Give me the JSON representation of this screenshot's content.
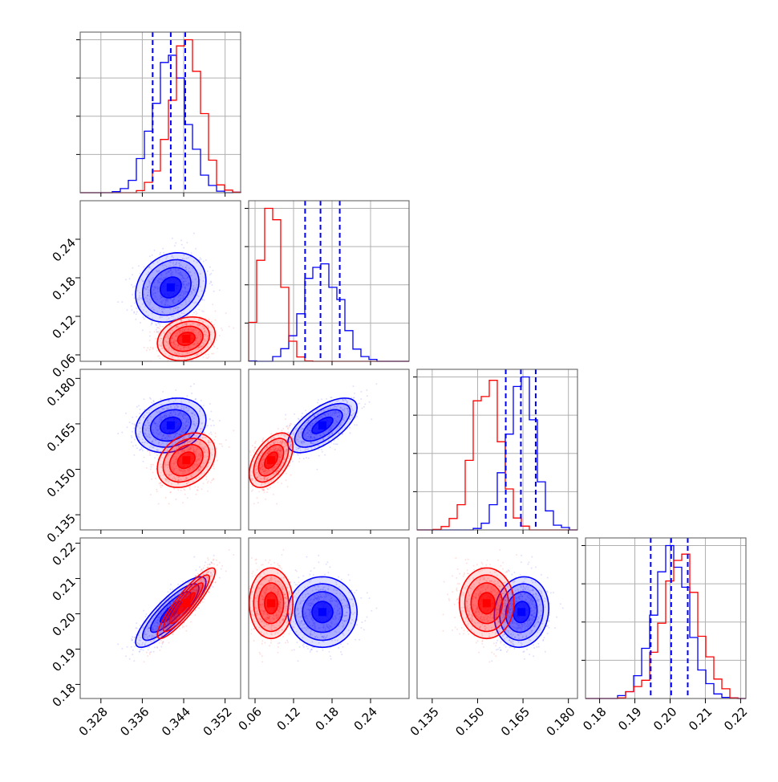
{
  "colors": {
    "model_a": "#0000ff",
    "model_b": "#ff0000",
    "background": "#ffffff",
    "grid": "#b0b0b0"
  },
  "chart_data": {
    "type": "corner",
    "grid": true,
    "parameters": [
      {
        "id": "p1",
        "range": [
          0.324,
          0.355
        ],
        "tick_labels": [
          "0.328",
          "0.336",
          "0.344",
          "0.352"
        ],
        "ticks": [
          0.328,
          0.336,
          0.344,
          0.352
        ]
      },
      {
        "id": "p2",
        "range": [
          0.05,
          0.3
        ],
        "tick_labels": [
          "0.06",
          "0.12",
          "0.18",
          "0.24"
        ],
        "ticks": [
          0.06,
          0.12,
          0.18,
          0.24
        ]
      },
      {
        "id": "p3",
        "range": [
          0.13,
          0.183
        ],
        "tick_labels": [
          "0.135",
          "0.150",
          "0.165",
          "0.180"
        ],
        "ticks": [
          0.135,
          0.15,
          0.165,
          0.18
        ]
      },
      {
        "id": "p4",
        "range": [
          0.176,
          0.2215
        ],
        "tick_labels": [
          "0.18",
          "0.19",
          "0.20",
          "0.21",
          "0.22"
        ],
        "ticks": [
          0.18,
          0.19,
          0.2,
          0.21,
          0.22
        ]
      }
    ],
    "series": [
      {
        "color": "#0000ff",
        "mean": [
          0.3415,
          0.165,
          0.1645,
          0.2005
        ],
        "std": [
          0.0034,
          0.027,
          0.0045,
          0.005
        ],
        "corr": {
          "p1-p2": 0.2,
          "p1-p3": 0.2,
          "p1-p4": 0.85,
          "p2-p3": 0.65,
          "p2-p4": 0.0,
          "p3-p4": 0.1
        },
        "quantiles": [
          [
            0.338,
            0.3415,
            0.3443
          ],
          [
            0.138,
            0.162,
            0.192
          ],
          [
            0.1593,
            0.1643,
            0.1692
          ],
          [
            0.1945,
            0.2003,
            0.205
          ]
        ]
      },
      {
        "color": "#ff0000",
        "mean": [
          0.3445,
          0.085,
          0.153,
          0.203
        ],
        "std": [
          0.0028,
          0.017,
          0.0045,
          0.005
        ],
        "corr": {
          "p1-p2": 0.2,
          "p1-p3": 0.3,
          "p1-p4": 0.9,
          "p2-p3": 0.5,
          "p2-p4": 0.0,
          "p3-p4": 0.0
        }
      }
    ]
  }
}
